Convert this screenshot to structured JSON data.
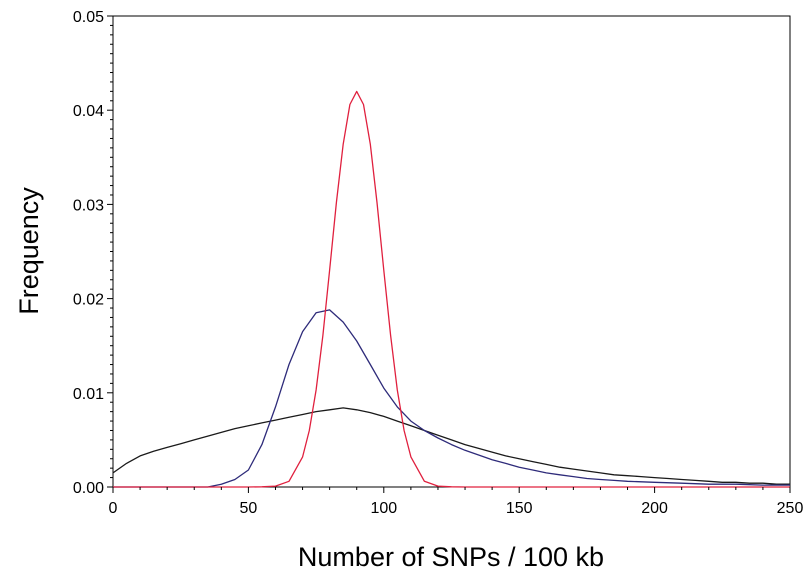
{
  "chart_data": {
    "type": "line",
    "title": "",
    "xlabel": "Number of SNPs / 100 kb",
    "ylabel": "Frequency",
    "xlim": [
      0,
      250
    ],
    "ylim": [
      0,
      0.05
    ],
    "x_ticks": [
      "0",
      "50",
      "100",
      "150",
      "200",
      "250"
    ],
    "y_ticks": [
      "0.00",
      "0.01",
      "0.02",
      "0.03",
      "0.04",
      "0.05"
    ],
    "grid": false,
    "legend": "none",
    "series": [
      {
        "color": "#1a1a1a",
        "x": [
          0,
          5,
          10,
          15,
          20,
          25,
          30,
          35,
          40,
          45,
          50,
          55,
          60,
          65,
          70,
          75,
          80,
          85,
          90,
          95,
          100,
          105,
          110,
          115,
          120,
          125,
          130,
          135,
          140,
          145,
          150,
          155,
          160,
          165,
          170,
          175,
          180,
          185,
          190,
          195,
          200,
          205,
          210,
          215,
          220,
          225,
          230,
          235,
          240,
          245,
          250
        ],
        "values": [
          0.0015,
          0.0025,
          0.0033,
          0.0038,
          0.0042,
          0.0046,
          0.005,
          0.0054,
          0.0058,
          0.0062,
          0.0065,
          0.0068,
          0.0071,
          0.0074,
          0.0077,
          0.008,
          0.0082,
          0.0084,
          0.0082,
          0.0079,
          0.0075,
          0.007,
          0.0065,
          0.006,
          0.0055,
          0.005,
          0.0045,
          0.0041,
          0.0037,
          0.0033,
          0.003,
          0.0027,
          0.0024,
          0.0021,
          0.0019,
          0.0017,
          0.0015,
          0.0013,
          0.0012,
          0.0011,
          0.001,
          0.0009,
          0.0008,
          0.0007,
          0.0006,
          0.0005,
          0.0005,
          0.0004,
          0.0004,
          0.0003,
          0.0003
        ]
      },
      {
        "color": "#2e2b7a",
        "x": [
          0,
          35,
          40,
          45,
          50,
          55,
          60,
          65,
          70,
          75,
          80,
          85,
          90,
          95,
          100,
          105,
          110,
          115,
          120,
          125,
          130,
          135,
          140,
          145,
          150,
          155,
          160,
          165,
          170,
          175,
          180,
          185,
          190,
          200,
          210,
          220,
          230,
          240,
          250
        ],
        "values": [
          0,
          0,
          0.0003,
          0.0008,
          0.0018,
          0.0045,
          0.0085,
          0.013,
          0.0165,
          0.0185,
          0.0188,
          0.0175,
          0.0155,
          0.013,
          0.0105,
          0.0085,
          0.007,
          0.006,
          0.0052,
          0.0045,
          0.0039,
          0.0034,
          0.0029,
          0.0025,
          0.0021,
          0.0018,
          0.0015,
          0.0013,
          0.0011,
          0.0009,
          0.0008,
          0.0007,
          0.0006,
          0.0005,
          0.0004,
          0.0003,
          0.0003,
          0.0002,
          0.0002
        ]
      },
      {
        "color": "#e0203e",
        "x": [
          0,
          50,
          55,
          60,
          65,
          70,
          72.5,
          75,
          77.5,
          80,
          82.5,
          85,
          87.5,
          90,
          92.5,
          95,
          97.5,
          100,
          102.5,
          105,
          107.5,
          110,
          115,
          120,
          125,
          130,
          250
        ],
        "values": [
          0,
          0,
          2e-05,
          0.0001,
          0.0006,
          0.0032,
          0.006,
          0.0103,
          0.0161,
          0.023,
          0.0302,
          0.0364,
          0.0406,
          0.042,
          0.0406,
          0.0364,
          0.0302,
          0.023,
          0.0161,
          0.0103,
          0.006,
          0.0032,
          0.0006,
          0.0001,
          2e-05,
          0,
          0
        ]
      }
    ]
  }
}
